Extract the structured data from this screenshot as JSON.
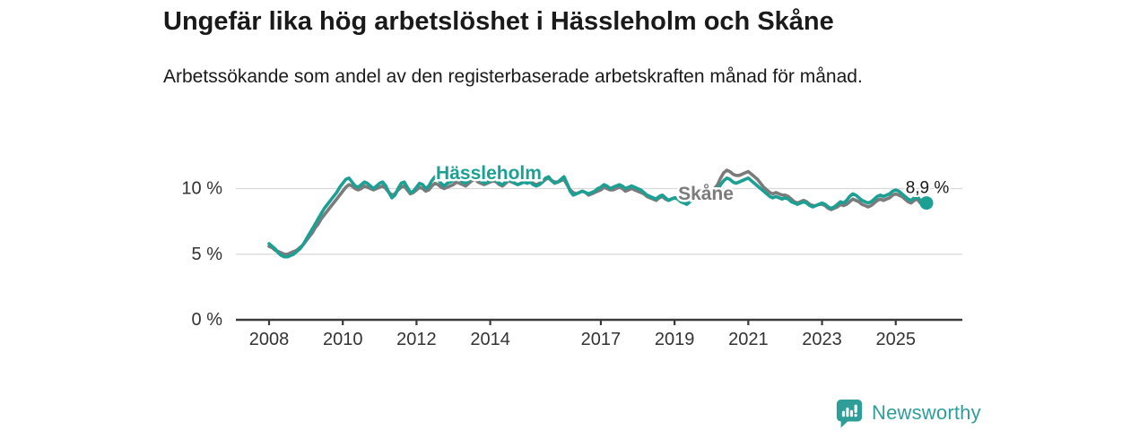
{
  "header": {
    "title": "Ungefär lika hög arbetslöshet i Hässleholm och Skåne",
    "subtitle": "Arbetssökande som andel av den registerbaserade arbetskraften månad för månad."
  },
  "colors": {
    "hassleholm": "#1da094",
    "skane": "#7b7b7b",
    "grid": "#d9d9d9",
    "axis": "#3a3a3a",
    "tick_label": "#333333",
    "annotation": "#1a1a1a",
    "logo": "#2f9e99"
  },
  "chart_data": {
    "type": "line",
    "title": "Ungefär lika hög arbetslöshet i Hässleholm och Skåne",
    "xlabel": "",
    "ylabel": "",
    "unit": "%",
    "x_start": "2008-01",
    "x_end": "2025-11",
    "points_per_year": 12,
    "ylim": [
      0,
      13.4
    ],
    "grid": "horizontal",
    "y_ticks": [
      {
        "value": 0,
        "label": "0 %"
      },
      {
        "value": 5,
        "label": "5 %"
      },
      {
        "value": 10,
        "label": "10 %"
      }
    ],
    "x_ticks": [
      {
        "year": 2008,
        "label": "2008"
      },
      {
        "year": 2010,
        "label": "2010"
      },
      {
        "year": 2012,
        "label": "2012"
      },
      {
        "year": 2014,
        "label": "2014"
      },
      {
        "year": 2017,
        "label": "2017"
      },
      {
        "year": 2019,
        "label": "2019"
      },
      {
        "year": 2021,
        "label": "2021"
      },
      {
        "year": 2023,
        "label": "2023"
      },
      {
        "year": 2025,
        "label": "2025"
      }
    ],
    "series": [
      {
        "name": "Skåne",
        "color": "#7b7b7b",
        "values": [
          5.6,
          5.5,
          5.3,
          5.2,
          5.1,
          5.0,
          5.0,
          5.1,
          5.2,
          5.3,
          5.5,
          5.7,
          6.0,
          6.3,
          6.6,
          7.0,
          7.3,
          7.7,
          8.0,
          8.3,
          8.6,
          8.9,
          9.2,
          9.5,
          9.8,
          10.1,
          10.3,
          10.2,
          10.0,
          9.9,
          10.0,
          10.2,
          10.1,
          10.0,
          9.9,
          10.0,
          10.1,
          10.2,
          10.0,
          9.7,
          9.5,
          9.6,
          9.9,
          10.1,
          10.2,
          9.9,
          9.6,
          9.7,
          9.9,
          10.1,
          10.0,
          9.8,
          9.9,
          10.2,
          10.4,
          10.3,
          10.1,
          10.0,
          10.1,
          10.2,
          10.3,
          10.5,
          10.4,
          10.3,
          10.2,
          10.4,
          10.6,
          10.7,
          10.5,
          10.4,
          10.3,
          10.4,
          10.5,
          10.6,
          10.5,
          10.3,
          10.2,
          10.4,
          10.6,
          10.5,
          10.4,
          10.3,
          10.4,
          10.5,
          10.5,
          10.6,
          10.4,
          10.3,
          10.4,
          10.5,
          10.7,
          10.8,
          10.6,
          10.5,
          10.5,
          10.6,
          10.7,
          10.3,
          9.9,
          9.7,
          9.6,
          9.7,
          9.8,
          9.7,
          9.5,
          9.6,
          9.7,
          9.8,
          9.9,
          10.1,
          10.0,
          9.9,
          9.9,
          10.0,
          10.1,
          10.0,
          9.8,
          9.9,
          10.0,
          9.9,
          9.8,
          9.7,
          9.6,
          9.4,
          9.3,
          9.2,
          9.1,
          9.3,
          9.4,
          9.2,
          9.1,
          9.2,
          9.3,
          9.3,
          9.2,
          9.1,
          9.0,
          9.2,
          9.4,
          9.3,
          9.4,
          9.5,
          9.5,
          9.7,
          9.8,
          10.0,
          10.3,
          10.8,
          11.2,
          11.4,
          11.3,
          11.1,
          11.0,
          11.0,
          11.1,
          11.2,
          11.3,
          11.1,
          10.9,
          10.7,
          10.4,
          10.1,
          9.9,
          9.7,
          9.6,
          9.7,
          9.6,
          9.5,
          9.5,
          9.4,
          9.2,
          9.0,
          8.9,
          9.0,
          9.1,
          9.0,
          8.8,
          8.7,
          8.7,
          8.8,
          8.8,
          8.7,
          8.5,
          8.4,
          8.5,
          8.6,
          8.8,
          8.7,
          8.8,
          9.0,
          9.2,
          9.1,
          9.0,
          8.8,
          8.7,
          8.6,
          8.7,
          8.9,
          9.1,
          9.2,
          9.1,
          9.2,
          9.3,
          9.5,
          9.6,
          9.5,
          9.4,
          9.2,
          9.0,
          8.9,
          9.1,
          9.2,
          8.9,
          8.7,
          8.8
        ]
      },
      {
        "name": "Hässleholm",
        "color": "#1da094",
        "values": [
          5.8,
          5.6,
          5.4,
          5.1,
          4.9,
          4.8,
          4.8,
          4.9,
          5.0,
          5.2,
          5.4,
          5.7,
          6.1,
          6.5,
          6.9,
          7.3,
          7.7,
          8.1,
          8.5,
          8.8,
          9.1,
          9.4,
          9.7,
          10.1,
          10.4,
          10.7,
          10.8,
          10.5,
          10.2,
          10.1,
          10.3,
          10.5,
          10.4,
          10.2,
          10.0,
          10.2,
          10.4,
          10.5,
          10.2,
          9.7,
          9.3,
          9.5,
          10.0,
          10.4,
          10.5,
          10.1,
          9.7,
          9.8,
          10.1,
          10.4,
          10.3,
          10.0,
          10.2,
          10.6,
          10.9,
          10.7,
          10.4,
          10.2,
          10.4,
          10.5,
          10.6,
          10.8,
          10.7,
          10.5,
          10.4,
          10.6,
          10.9,
          11.0,
          10.8,
          10.6,
          10.4,
          10.5,
          10.6,
          10.8,
          10.6,
          10.4,
          10.3,
          10.5,
          10.7,
          10.6,
          10.4,
          10.3,
          10.4,
          10.5,
          10.4,
          10.5,
          10.3,
          10.2,
          10.3,
          10.5,
          10.8,
          10.9,
          10.6,
          10.4,
          10.5,
          10.7,
          10.9,
          10.4,
          9.8,
          9.5,
          9.6,
          9.7,
          9.8,
          9.7,
          9.6,
          9.7,
          9.8,
          10.0,
          10.1,
          10.3,
          10.2,
          10.0,
          10.1,
          10.2,
          10.3,
          10.2,
          10.0,
          10.1,
          10.2,
          10.1,
          10.0,
          9.9,
          9.7,
          9.5,
          9.4,
          9.3,
          9.2,
          9.4,
          9.5,
          9.3,
          9.1,
          9.2,
          9.3,
          9.2,
          9.0,
          8.9,
          8.8,
          9.0,
          9.2,
          9.1,
          9.3,
          9.4,
          9.3,
          9.5,
          9.6,
          9.7,
          9.9,
          10.3,
          10.6,
          10.8,
          10.7,
          10.5,
          10.4,
          10.5,
          10.6,
          10.7,
          10.8,
          10.6,
          10.4,
          10.2,
          10.0,
          9.8,
          9.6,
          9.4,
          9.3,
          9.4,
          9.3,
          9.2,
          9.3,
          9.2,
          9.0,
          8.9,
          8.8,
          8.9,
          9.0,
          8.9,
          8.7,
          8.6,
          8.7,
          8.8,
          8.9,
          8.8,
          8.6,
          8.5,
          8.6,
          8.8,
          9.0,
          8.9,
          9.1,
          9.4,
          9.6,
          9.5,
          9.3,
          9.1,
          9.0,
          8.9,
          9.0,
          9.2,
          9.4,
          9.5,
          9.4,
          9.5,
          9.6,
          9.8,
          9.9,
          9.8,
          9.6,
          9.4,
          9.2,
          9.1,
          9.3,
          9.4,
          9.1,
          9.0,
          8.9
        ]
      }
    ],
    "series_labels": [
      {
        "series": "Hässleholm",
        "text": "Hässleholm"
      },
      {
        "series": "Skåne",
        "text": "Skåne"
      }
    ],
    "end_annotation": {
      "series": "Hässleholm",
      "text": "8,9 %"
    },
    "legend_position": "inline-labels"
  },
  "logo": {
    "text": "Newsworthy",
    "icon": "bar-chart-bubble-icon"
  }
}
